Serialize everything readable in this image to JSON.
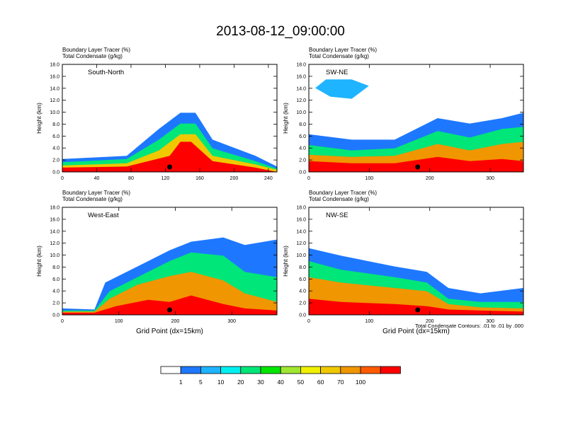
{
  "title": "2013-08-12_09:00:00",
  "colorbar": {
    "colors": [
      "#ffffff",
      "#1e78ff",
      "#1eb4ff",
      "#00f0f0",
      "#00e678",
      "#00e600",
      "#a0e632",
      "#f0f000",
      "#f0c800",
      "#f09600",
      "#ff5a00",
      "#ff0000"
    ],
    "labels": [
      "1",
      "5",
      "10",
      "20",
      "30",
      "40",
      "50",
      "60",
      "70",
      "100"
    ]
  },
  "footnote": "Total Condensate Contours: .01 to .01 by .000",
  "chart_data": [
    {
      "type": "heatmap",
      "panel": "South-North",
      "title_lines": [
        "Boundary Layer Tracer    (%)",
        "Total Condensate    (g/kg)"
      ],
      "ylabel": "Height (km)",
      "xlabel": "",
      "xlim": [
        0,
        250
      ],
      "ylim": [
        0,
        18
      ],
      "xticks": [
        "0",
        "40",
        "80",
        "120",
        "160",
        "200",
        "240"
      ],
      "xtick_values": [
        0,
        40,
        80,
        120,
        160,
        200,
        240
      ],
      "yticks": [
        "0.0",
        "2.0",
        "4.0",
        "6.0",
        "8.0",
        "10.0",
        "12.0",
        "14.0",
        "16.0",
        "18.0"
      ],
      "marker_x": 125
    },
    {
      "type": "heatmap",
      "panel": "SW-NE",
      "title_lines": [
        "Boundary Layer Tracer    (%)",
        "Total Condensate    (g/kg)"
      ],
      "ylabel": "Height (km)",
      "xlabel": "",
      "xlim": [
        0,
        355
      ],
      "ylim": [
        0,
        18
      ],
      "xticks": [
        "0",
        "100",
        "200",
        "300"
      ],
      "xtick_values": [
        0,
        100,
        200,
        300
      ],
      "yticks": [
        "0.0",
        "2.0",
        "4.0",
        "6.0",
        "8.0",
        "10.0",
        "12.0",
        "14.0",
        "16.0",
        "18.0"
      ],
      "marker_x": 180
    },
    {
      "type": "heatmap",
      "panel": "West-East",
      "title_lines": [
        "Boundary Layer Tracer    (%)",
        "Total Condensate    (g/kg)"
      ],
      "ylabel": "Height (km)",
      "xlabel": "Grid Point (dx=15km)",
      "xlim": [
        0,
        380
      ],
      "ylim": [
        0,
        18
      ],
      "xticks": [
        "0",
        "100",
        "200",
        "300"
      ],
      "xtick_values": [
        0,
        100,
        200,
        300
      ],
      "yticks": [
        "0.0",
        "2.0",
        "4.0",
        "6.0",
        "8.0",
        "10.0",
        "12.0",
        "14.0",
        "16.0",
        "18.0"
      ],
      "marker_x": 190
    },
    {
      "type": "heatmap",
      "panel": "NW-SE",
      "title_lines": [
        "Boundary Layer Tracer    (%)",
        "Total Condensate    (g/kg)"
      ],
      "ylabel": "Height (km)",
      "xlabel": "Grid Point (dx=15km)",
      "xlim": [
        0,
        355
      ],
      "ylim": [
        0,
        18
      ],
      "xticks": [
        "0",
        "100",
        "200",
        "300"
      ],
      "xtick_values": [
        0,
        100,
        200,
        300
      ],
      "yticks": [
        "0.0",
        "2.0",
        "4.0",
        "6.0",
        "8.0",
        "10.0",
        "12.0",
        "14.0",
        "16.0",
        "18.0"
      ],
      "marker_x": 180
    }
  ]
}
